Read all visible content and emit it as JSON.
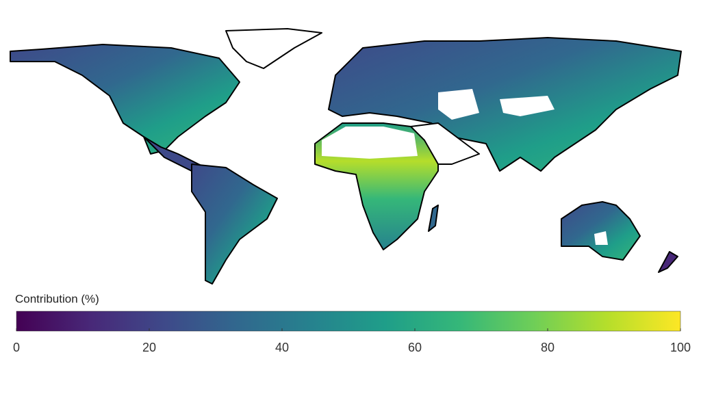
{
  "legend": {
    "title": "Contribution (%)",
    "range": [
      0,
      100
    ],
    "ticks": [
      0,
      20,
      40,
      60,
      80,
      100
    ],
    "colormap": [
      "#440154",
      "#482878",
      "#3e4989",
      "#31688e",
      "#26828e",
      "#1f9e89",
      "#35b779",
      "#6ece58",
      "#b5de2b",
      "#fde725"
    ]
  }
}
